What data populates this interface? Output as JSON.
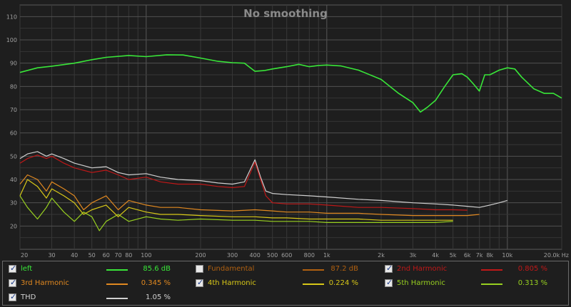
{
  "chart_data": {
    "type": "line",
    "title": "No smoothing",
    "x_scale": "log",
    "x_unit": "Hz",
    "xlim": [
      20,
      20000
    ],
    "ylim": [
      10,
      115
    ],
    "y_ticks": [
      20,
      30,
      40,
      50,
      60,
      70,
      80,
      90,
      100,
      110
    ],
    "x_ticks": [
      {
        "v": 20,
        "label": "20"
      },
      {
        "v": 30,
        "label": "30"
      },
      {
        "v": 40,
        "label": "40"
      },
      {
        "v": 50,
        "label": "50"
      },
      {
        "v": 60,
        "label": "60"
      },
      {
        "v": 70,
        "label": "70"
      },
      {
        "v": 80,
        "label": "80"
      },
      {
        "v": 100,
        "label": "100"
      },
      {
        "v": 200,
        "label": "200"
      },
      {
        "v": 300,
        "label": "300"
      },
      {
        "v": 400,
        "label": "400"
      },
      {
        "v": 500,
        "label": "500"
      },
      {
        "v": 600,
        "label": "600"
      },
      {
        "v": 800,
        "label": "800"
      },
      {
        "v": 1000,
        "label": "1k"
      },
      {
        "v": 2000,
        "label": "2k"
      },
      {
        "v": 3000,
        "label": "3k"
      },
      {
        "v": 4000,
        "label": "4k"
      },
      {
        "v": 5000,
        "label": "5k"
      },
      {
        "v": 6000,
        "label": "6k"
      },
      {
        "v": 7000,
        "label": "7k"
      },
      {
        "v": 8000,
        "label": "8k"
      },
      {
        "v": 10000,
        "label": "10k"
      },
      {
        "v": 20000,
        "label": "20.0k Hz"
      }
    ],
    "grid": true,
    "series": [
      {
        "name": "left",
        "color": "#39e639",
        "points": [
          [
            20,
            86
          ],
          [
            25,
            88
          ],
          [
            30,
            88.7
          ],
          [
            40,
            90
          ],
          [
            50,
            91.5
          ],
          [
            60,
            92.5
          ],
          [
            80,
            93.3
          ],
          [
            100,
            92.8
          ],
          [
            130,
            93.6
          ],
          [
            160,
            93.5
          ],
          [
            200,
            92.2
          ],
          [
            250,
            90.8
          ],
          [
            300,
            90.2
          ],
          [
            350,
            90
          ],
          [
            400,
            86.5
          ],
          [
            450,
            86.8
          ],
          [
            500,
            87.5
          ],
          [
            600,
            88.5
          ],
          [
            700,
            89.5
          ],
          [
            800,
            88.5
          ],
          [
            900,
            89
          ],
          [
            1000,
            89.2
          ],
          [
            1200,
            88.8
          ],
          [
            1500,
            87
          ],
          [
            2000,
            83
          ],
          [
            2500,
            77
          ],
          [
            3000,
            73
          ],
          [
            3300,
            69
          ],
          [
            3600,
            71
          ],
          [
            4000,
            74
          ],
          [
            4500,
            80
          ],
          [
            5000,
            85
          ],
          [
            5600,
            85.5
          ],
          [
            6000,
            84
          ],
          [
            6500,
            81
          ],
          [
            7000,
            78
          ],
          [
            7500,
            85
          ],
          [
            8000,
            85
          ],
          [
            9000,
            87
          ],
          [
            10000,
            88
          ],
          [
            11000,
            87.5
          ],
          [
            12000,
            84
          ],
          [
            14000,
            79
          ],
          [
            16000,
            77
          ],
          [
            18000,
            77
          ],
          [
            20000,
            75
          ]
        ]
      },
      {
        "name": "Fundamental",
        "color": "#b06010",
        "enabled": false,
        "points": []
      },
      {
        "name": "2nd Harmonic",
        "color": "#c01818",
        "points": [
          [
            20,
            47
          ],
          [
            22,
            49
          ],
          [
            25,
            50.5
          ],
          [
            28,
            49
          ],
          [
            30,
            50
          ],
          [
            35,
            47
          ],
          [
            40,
            45
          ],
          [
            50,
            43
          ],
          [
            60,
            44
          ],
          [
            70,
            42
          ],
          [
            80,
            40
          ],
          [
            100,
            41
          ],
          [
            120,
            39
          ],
          [
            150,
            38
          ],
          [
            200,
            38
          ],
          [
            250,
            37
          ],
          [
            300,
            36.5
          ],
          [
            350,
            37
          ],
          [
            400,
            47.5
          ],
          [
            430,
            40
          ],
          [
            460,
            33
          ],
          [
            500,
            30
          ],
          [
            600,
            29.5
          ],
          [
            800,
            29.5
          ],
          [
            1000,
            29
          ],
          [
            1500,
            28
          ],
          [
            2000,
            28
          ],
          [
            3000,
            27.5
          ],
          [
            4000,
            27
          ],
          [
            5000,
            27
          ],
          [
            6000,
            26.8
          ]
        ]
      },
      {
        "name": "3rd Harmonic",
        "color": "#e08820",
        "points": [
          [
            20,
            38
          ],
          [
            22,
            42
          ],
          [
            25,
            40
          ],
          [
            28,
            35
          ],
          [
            30,
            39
          ],
          [
            35,
            36
          ],
          [
            40,
            33
          ],
          [
            45,
            27
          ],
          [
            50,
            30
          ],
          [
            60,
            33
          ],
          [
            70,
            27
          ],
          [
            80,
            31
          ],
          [
            100,
            29
          ],
          [
            120,
            28
          ],
          [
            150,
            28
          ],
          [
            200,
            27
          ],
          [
            300,
            26.5
          ],
          [
            400,
            27
          ],
          [
            500,
            26.5
          ],
          [
            600,
            26
          ],
          [
            800,
            26
          ],
          [
            1000,
            25.5
          ],
          [
            1500,
            25.5
          ],
          [
            2000,
            25
          ],
          [
            3000,
            24.5
          ],
          [
            4000,
            24.5
          ],
          [
            5000,
            24.5
          ],
          [
            6000,
            24.5
          ],
          [
            7000,
            25
          ]
        ]
      },
      {
        "name": "4th Harmonic",
        "color": "#d8c818",
        "points": [
          [
            20,
            33
          ],
          [
            22,
            40
          ],
          [
            25,
            37
          ],
          [
            28,
            32
          ],
          [
            30,
            36
          ],
          [
            35,
            33
          ],
          [
            40,
            30
          ],
          [
            45,
            25
          ],
          [
            50,
            27
          ],
          [
            60,
            29
          ],
          [
            70,
            24
          ],
          [
            80,
            28
          ],
          [
            100,
            26
          ],
          [
            120,
            25
          ],
          [
            150,
            25
          ],
          [
            200,
            24.5
          ],
          [
            300,
            24
          ],
          [
            400,
            24
          ],
          [
            500,
            23.5
          ],
          [
            600,
            23.5
          ],
          [
            800,
            23
          ],
          [
            1000,
            23
          ],
          [
            1500,
            23
          ],
          [
            2000,
            22.5
          ],
          [
            3000,
            22.5
          ],
          [
            4000,
            22.5
          ],
          [
            5000,
            22.5
          ]
        ]
      },
      {
        "name": "5th Harmonic",
        "color": "#98d020",
        "points": [
          [
            20,
            33
          ],
          [
            22,
            28
          ],
          [
            25,
            23
          ],
          [
            28,
            28
          ],
          [
            30,
            32
          ],
          [
            35,
            26
          ],
          [
            40,
            22
          ],
          [
            45,
            26
          ],
          [
            50,
            24
          ],
          [
            55,
            18
          ],
          [
            60,
            22
          ],
          [
            70,
            25
          ],
          [
            80,
            22
          ],
          [
            100,
            24
          ],
          [
            120,
            23
          ],
          [
            150,
            22.5
          ],
          [
            200,
            23
          ],
          [
            300,
            22.5
          ],
          [
            400,
            22.5
          ],
          [
            500,
            22
          ],
          [
            600,
            22
          ],
          [
            800,
            22
          ],
          [
            1000,
            21.5
          ],
          [
            1500,
            21.5
          ],
          [
            2000,
            21.5
          ],
          [
            3000,
            21.5
          ],
          [
            4000,
            21.5
          ],
          [
            5000,
            22
          ]
        ]
      },
      {
        "name": "THD",
        "color": "#d0d0d0",
        "points": [
          [
            20,
            49
          ],
          [
            22,
            51
          ],
          [
            25,
            52
          ],
          [
            28,
            50
          ],
          [
            30,
            51
          ],
          [
            35,
            49
          ],
          [
            40,
            47
          ],
          [
            50,
            45
          ],
          [
            60,
            45.5
          ],
          [
            70,
            43
          ],
          [
            80,
            42
          ],
          [
            100,
            42.5
          ],
          [
            120,
            41
          ],
          [
            150,
            40
          ],
          [
            200,
            39.5
          ],
          [
            250,
            38.5
          ],
          [
            300,
            38
          ],
          [
            350,
            39
          ],
          [
            400,
            48.5
          ],
          [
            430,
            41
          ],
          [
            460,
            35
          ],
          [
            500,
            34
          ],
          [
            600,
            33.5
          ],
          [
            800,
            33
          ],
          [
            1000,
            32.5
          ],
          [
            1500,
            31.5
          ],
          [
            2000,
            31
          ],
          [
            3000,
            30
          ],
          [
            4000,
            29.5
          ],
          [
            5000,
            29
          ],
          [
            6000,
            28.5
          ],
          [
            7000,
            28
          ],
          [
            8000,
            29
          ],
          [
            9000,
            30
          ],
          [
            10000,
            31
          ]
        ]
      }
    ]
  },
  "legend": [
    {
      "name": "left",
      "value": "85.6 dB",
      "color": "#39e639",
      "checked": true
    },
    {
      "name": "Fundamental",
      "value": "87.2 dB",
      "color": "#b06010",
      "checked": false
    },
    {
      "name": "2nd Harmonic",
      "value": "0.805 %",
      "color": "#c01818",
      "checked": true
    },
    {
      "name": "3rd Harmonic",
      "value": "0.345 %",
      "color": "#e08820",
      "checked": true
    },
    {
      "name": "4th Harmonic",
      "value": "0.224 %",
      "color": "#d8c818",
      "checked": true
    },
    {
      "name": "5th Harmonic",
      "value": "0.313 %",
      "color": "#98d020",
      "checked": true
    },
    {
      "name": "THD",
      "value": "1.05 %",
      "color": "#d0d0d0",
      "checked": true
    }
  ]
}
